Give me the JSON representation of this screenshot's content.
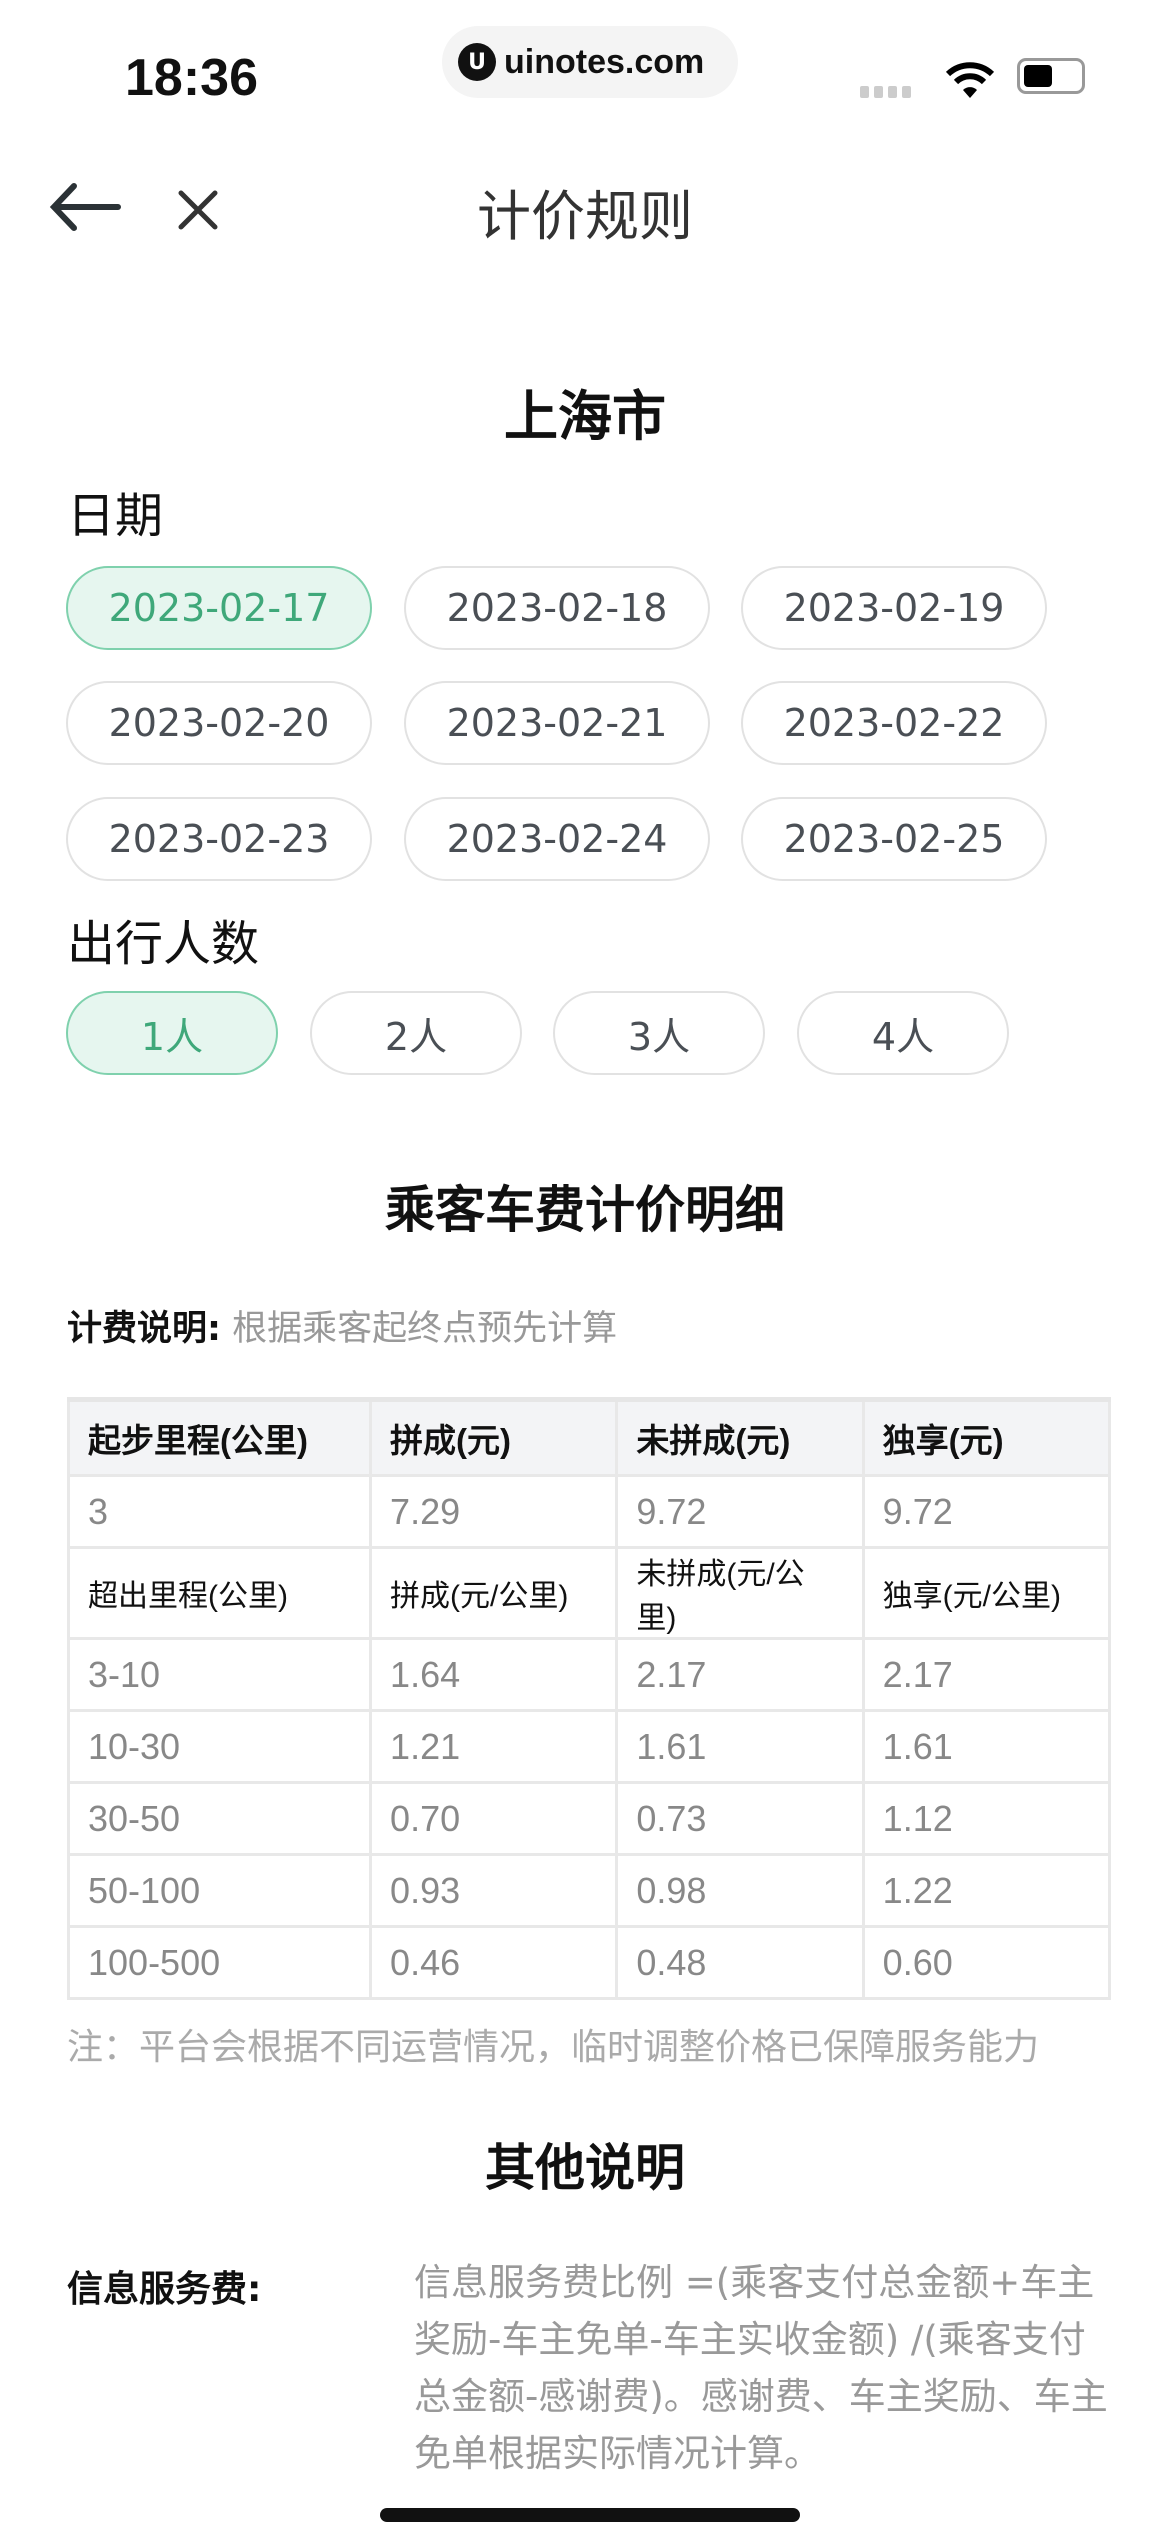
{
  "status_bar": {
    "time": "18:36",
    "url": "uinotes.com",
    "url_logo": "U"
  },
  "nav": {
    "title": "计价规则",
    "back_icon": "arrow-left-icon",
    "close_icon": "close-icon"
  },
  "city": "上海市",
  "date_section": {
    "label": "日期",
    "selected": "2023-02-17",
    "options": [
      "2023-02-17",
      "2023-02-18",
      "2023-02-19",
      "2023-02-20",
      "2023-02-21",
      "2023-02-22",
      "2023-02-23",
      "2023-02-24",
      "2023-02-25"
    ]
  },
  "people_section": {
    "label": "出行人数",
    "selected": "1人",
    "options": [
      "1人",
      "2人",
      "3人",
      "4人"
    ]
  },
  "fare": {
    "title": "乘客车费计价明细",
    "desc_label": "计费说明:",
    "desc_text": "根据乘客起终点预先计算",
    "header": [
      "起步里程(公里)",
      "拼成(元)",
      "未拼成(元)",
      "独享(元)"
    ],
    "base_row": [
      "3",
      "7.29",
      "9.72",
      "9.72"
    ],
    "sub_header": [
      "超出里程(公里)",
      "拼成(元/公里)",
      "未拼成(元/公里)",
      "独享(元/公里)"
    ],
    "rows": [
      [
        "3-10",
        "1.64",
        "2.17",
        "2.17"
      ],
      [
        "10-30",
        "1.21",
        "1.61",
        "1.61"
      ],
      [
        "30-50",
        "0.70",
        "0.73",
        "1.12"
      ],
      [
        "50-100",
        "0.93",
        "0.98",
        "1.22"
      ],
      [
        "100-500",
        "0.46",
        "0.48",
        "0.60"
      ]
    ],
    "note": "注：平台会根据不同运营情况，临时调整价格已保障服务能力"
  },
  "other": {
    "title": "其他说明",
    "info_label": "信息服务费:",
    "info_text": "信息服务费比例 =(乘客支付总金额+车主奖励-车主免单-车主实收金额) /(乘客支付总金额-感谢费)。感谢费、车主奖励、车主免单根据实际情况计算。"
  },
  "colors": {
    "accent": "#3fa87a",
    "accent_bg": "#e6f6ef"
  }
}
